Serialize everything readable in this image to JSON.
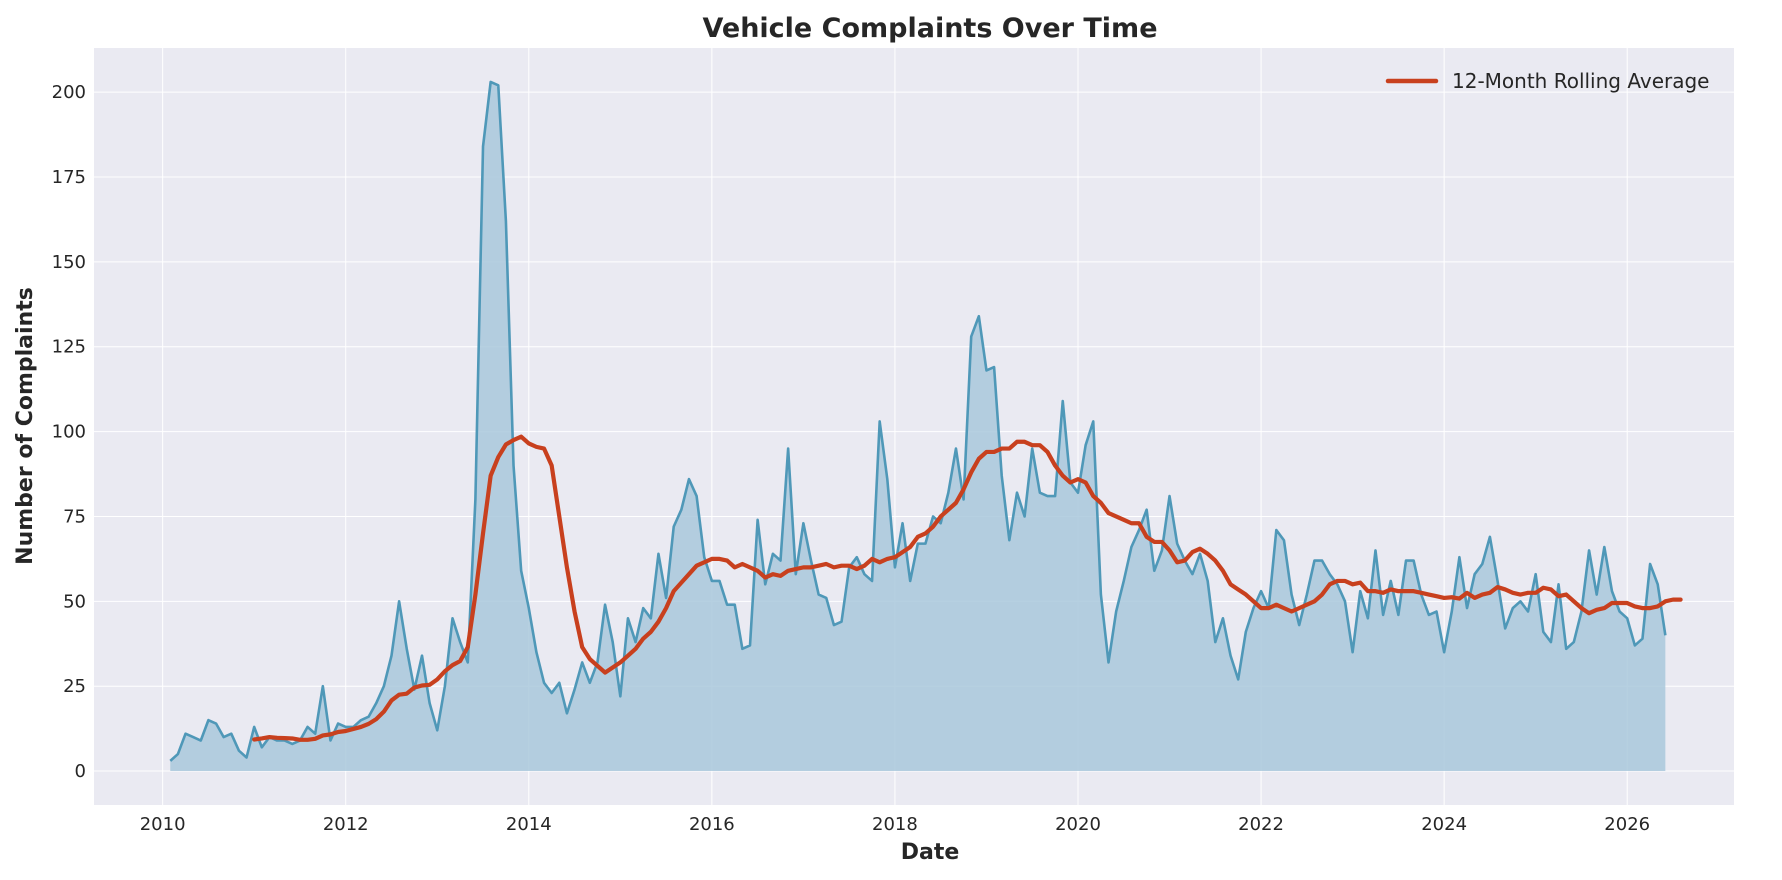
{
  "chart_data": {
    "type": "area",
    "title": "Vehicle Complaints Over Time",
    "xlabel": "Date",
    "ylabel": "Number of Complaints",
    "xlim": [
      "2009-04",
      "2027-03"
    ],
    "ylim": [
      -10,
      213
    ],
    "xticks": [
      "2010",
      "2012",
      "2014",
      "2016",
      "2018",
      "2020",
      "2022",
      "2024",
      "2026"
    ],
    "yticks": [
      0,
      25,
      50,
      75,
      100,
      125,
      150,
      175,
      200
    ],
    "grid": true,
    "legend": {
      "position": "top-right",
      "entries": [
        "12-Month Rolling Average"
      ]
    },
    "colors": {
      "background": "#eaeaf2",
      "grid": "#ffffff",
      "monthly_line": "#4f98b8",
      "monthly_fill": "#a9c8dc",
      "rolling": "#c8401e"
    },
    "start": "2010-02",
    "series": [
      {
        "values": [
          3,
          5,
          11,
          10,
          9,
          15,
          14,
          10,
          11,
          6,
          4,
          13,
          7,
          10,
          9,
          9,
          8,
          9,
          13,
          11,
          25,
          9,
          14,
          13,
          13,
          15,
          16,
          20,
          25,
          34,
          50,
          36,
          24,
          34,
          20,
          12,
          25,
          45,
          38,
          32,
          80,
          184,
          203,
          202,
          162,
          90,
          59,
          48,
          35,
          26,
          23,
          26,
          17,
          24,
          32,
          26,
          32,
          49,
          38,
          22,
          45,
          38,
          48,
          45,
          64,
          51,
          72,
          77,
          86,
          81,
          63,
          56,
          56,
          49,
          49,
          36,
          37,
          74,
          55,
          64,
          62,
          95,
          58,
          73,
          62,
          52,
          51,
          43,
          44,
          60,
          63,
          58,
          56,
          103,
          86,
          60,
          73,
          56,
          67,
          67,
          75,
          73,
          82,
          95,
          80,
          128,
          134,
          118,
          119,
          87,
          68,
          82,
          75,
          95,
          82,
          81,
          81,
          109,
          85,
          82,
          96,
          103,
          52,
          32,
          47,
          56,
          66,
          71,
          77,
          59,
          65,
          81,
          67,
          62,
          58,
          64,
          56,
          38,
          45,
          34,
          27,
          41,
          48,
          53,
          48,
          71,
          68,
          52,
          43,
          52,
          62,
          62,
          58,
          55,
          50,
          35,
          53,
          45,
          65,
          46,
          56,
          46,
          62,
          62,
          52,
          46,
          47,
          35,
          47,
          63,
          48,
          58,
          61,
          69,
          56,
          42,
          48,
          50,
          47,
          58,
          41,
          38,
          55,
          36,
          38,
          47,
          65,
          52,
          66,
          53,
          47,
          45,
          37,
          39,
          61,
          55,
          40
        ]
      },
      {
        "name": "12-Month Rolling Average",
        "start_index": 11,
        "values": [
          9.3,
          9.6,
          10,
          9.8,
          9.7,
          9.6,
          9.2,
          9.2,
          9.5,
          10.5,
          10.8,
          11.5,
          11.8,
          12.4,
          13,
          13.9,
          15.3,
          17.5,
          20.8,
          22.5,
          22.8,
          24.6,
          25.2,
          25.4,
          27,
          29.4,
          31.2,
          32.4,
          36.5,
          52,
          70,
          87,
          92.5,
          96.2,
          97.5,
          98.5,
          96.5,
          95.5,
          95,
          90,
          75,
          60,
          47,
          36.5,
          33,
          31,
          29,
          30.5,
          32,
          34,
          36,
          39,
          41,
          44,
          48,
          53,
          55.5,
          58,
          60.5,
          61.5,
          62.5,
          62.5,
          62,
          60,
          61,
          60,
          59,
          57,
          58,
          57.5,
          59,
          59.5,
          60,
          60,
          60.5,
          61,
          60,
          60.5,
          60.5,
          59.5,
          60.5,
          62.5,
          61.5,
          62.5,
          63,
          64.5,
          66,
          69,
          70,
          72,
          75,
          77,
          79,
          83,
          88,
          92,
          94,
          94,
          95,
          95,
          97,
          97,
          96,
          96,
          94,
          90,
          87,
          85,
          86,
          85,
          81,
          79,
          76,
          75,
          74,
          73,
          73,
          69,
          67.5,
          67.5,
          65,
          61.5,
          62,
          64.5,
          65.5,
          64,
          62,
          59,
          55,
          53.5,
          52,
          50,
          48,
          48,
          49,
          48,
          47,
          48,
          49,
          50,
          52,
          55,
          56,
          56,
          55,
          55.5,
          53,
          53,
          52.5,
          53.5,
          53,
          53,
          53,
          52.5,
          52,
          51.5,
          51,
          51.2,
          50.8,
          52.5,
          51,
          52,
          52.5,
          54.2,
          53.5,
          52.5,
          52,
          52.5,
          52.5,
          54,
          53.5,
          51.5,
          52,
          50,
          48,
          46.5,
          47.5,
          48,
          49.5,
          49.5,
          49.5,
          48.5,
          48,
          48,
          48.5,
          50,
          50.5,
          50.5
        ]
      }
    ]
  }
}
